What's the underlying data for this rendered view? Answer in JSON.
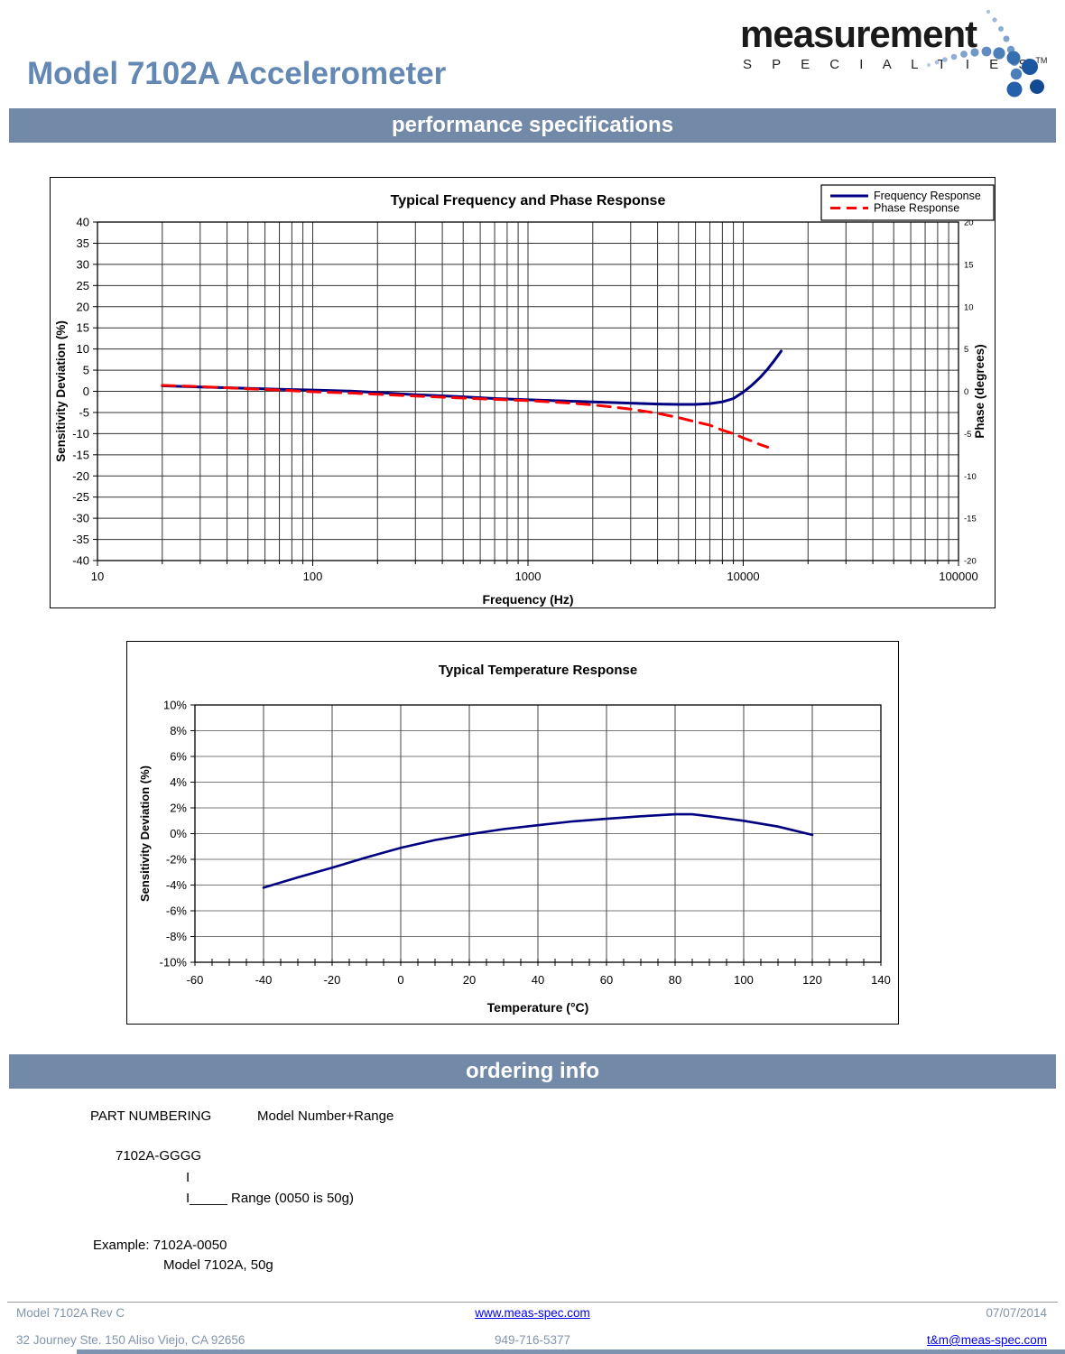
{
  "header": {
    "title": "Model 7102A Accelerometer",
    "logo": {
      "word": "measurement",
      "sub": "S P E C I A L T I E S",
      "tm": "TM"
    }
  },
  "banners": {
    "performance": "performance specifications",
    "ordering": "ordering info"
  },
  "chart_data": [
    {
      "type": "line",
      "title": "Typical Frequency and Phase Response",
      "xlabel": "Frequency (Hz)",
      "ylabel_left": "Sensitivity Deviation (%)",
      "ylabel_right": "Phase (degrees)",
      "x_scale": "log",
      "xlim": [
        10,
        100000
      ],
      "ylim_left": [
        -40,
        40
      ],
      "ylim_right": [
        -20,
        20
      ],
      "yticks_left": [
        40,
        35,
        30,
        25,
        20,
        15,
        10,
        5,
        0,
        -5,
        -10,
        -15,
        -20,
        -25,
        -30,
        -35,
        -40
      ],
      "yticks_right": [
        20,
        15,
        10,
        5,
        0,
        -5,
        -10,
        -15,
        -20
      ],
      "xticks": [
        10,
        100,
        1000,
        10000,
        100000
      ],
      "xtick_labels": [
        "10",
        "100",
        "1000",
        "10000",
        "100000"
      ],
      "grid": true,
      "legend_position": "top-right",
      "series": [
        {
          "name": "Frequency Response",
          "axis": "left",
          "color": "#000080",
          "style": "solid",
          "points": [
            [
              20,
              1.3
            ],
            [
              30,
              1.0
            ],
            [
              50,
              0.7
            ],
            [
              70,
              0.5
            ],
            [
              100,
              0.3
            ],
            [
              150,
              0.05
            ],
            [
              200,
              -0.3
            ],
            [
              300,
              -0.8
            ],
            [
              500,
              -1.3
            ],
            [
              700,
              -1.7
            ],
            [
              1000,
              -2.0
            ],
            [
              1500,
              -2.3
            ],
            [
              2000,
              -2.5
            ],
            [
              3000,
              -2.8
            ],
            [
              4000,
              -3.0
            ],
            [
              5000,
              -3.1
            ],
            [
              6000,
              -3.1
            ],
            [
              7000,
              -2.9
            ],
            [
              8000,
              -2.5
            ],
            [
              9000,
              -1.7
            ],
            [
              10000,
              -0.2
            ],
            [
              11000,
              1.5
            ],
            [
              12000,
              3.3
            ],
            [
              13000,
              5.3
            ],
            [
              14000,
              7.4
            ],
            [
              15000,
              9.5
            ]
          ]
        },
        {
          "name": "Phase Response",
          "axis": "right",
          "color": "#ff0000",
          "style": "dashed",
          "points": [
            [
              20,
              0.7
            ],
            [
              30,
              0.55
            ],
            [
              50,
              0.3
            ],
            [
              70,
              0.15
            ],
            [
              100,
              -0.05
            ],
            [
              150,
              -0.2
            ],
            [
              200,
              -0.35
            ],
            [
              300,
              -0.55
            ],
            [
              500,
              -0.8
            ],
            [
              700,
              -0.95
            ],
            [
              1000,
              -1.1
            ],
            [
              1500,
              -1.35
            ],
            [
              2000,
              -1.6
            ],
            [
              3000,
              -2.1
            ],
            [
              4000,
              -2.6
            ],
            [
              5000,
              -3.1
            ],
            [
              6000,
              -3.6
            ],
            [
              7000,
              -4.0
            ],
            [
              8000,
              -4.6
            ],
            [
              9000,
              -5.0
            ],
            [
              10000,
              -5.5
            ],
            [
              11000,
              -5.9
            ],
            [
              12000,
              -6.3
            ],
            [
              13000,
              -6.6
            ]
          ]
        }
      ]
    },
    {
      "type": "line",
      "title": "Typical Temperature Response",
      "xlabel": "Temperature (°C)",
      "ylabel": "Sensitivity Deviation (%)",
      "xlim": [
        -60,
        140
      ],
      "ylim": [
        -10,
        10
      ],
      "xticks": [
        -60,
        -40,
        -20,
        0,
        20,
        40,
        60,
        80,
        100,
        120,
        140
      ],
      "ytick_labels": [
        "10%",
        "8%",
        "6%",
        "4%",
        "2%",
        "0%",
        "-2%",
        "-4%",
        "-6%",
        "-8%",
        "-10%"
      ],
      "yticks": [
        10,
        8,
        6,
        4,
        2,
        0,
        -2,
        -4,
        -6,
        -8,
        -10
      ],
      "x_minor_step": 5,
      "grid": true,
      "series": [
        {
          "name": "Sensitivity Deviation",
          "color": "#000080",
          "style": "solid",
          "points": [
            [
              -40,
              -4.2
            ],
            [
              -30,
              -3.4
            ],
            [
              -20,
              -2.65
            ],
            [
              -10,
              -1.85
            ],
            [
              0,
              -1.1
            ],
            [
              10,
              -0.5
            ],
            [
              20,
              -0.05
            ],
            [
              30,
              0.35
            ],
            [
              40,
              0.65
            ],
            [
              50,
              0.95
            ],
            [
              60,
              1.15
            ],
            [
              70,
              1.35
            ],
            [
              80,
              1.5
            ],
            [
              85,
              1.5
            ],
            [
              90,
              1.35
            ],
            [
              100,
              1.0
            ],
            [
              110,
              0.55
            ],
            [
              120,
              -0.1
            ]
          ]
        }
      ]
    }
  ],
  "ordering": {
    "part_numbering_label": "PART NUMBERING",
    "part_numbering_value": "Model Number+Range",
    "code": "7102A-GGGG",
    "pipe": "I",
    "range_line": "I_____ Range (0050 is 50g)",
    "example_label": "Example: 7102A-0050",
    "example_value": "Model 7102A, 50g"
  },
  "footer": {
    "doc_rev": "Model 7102A Rev C",
    "website": "www.meas-spec.com",
    "date": "07/07/2014",
    "address": "32 Journey Ste. 150 Aliso Viejo, CA 92656",
    "phone": "949-716-5377",
    "email": "t&m@meas-spec.com"
  },
  "colors": {
    "banner": "#7389a8",
    "title": "#6388b4",
    "link": "#0000ee",
    "frequency_line": "#000080",
    "phase_line": "#ff0000",
    "temperature_line": "#000080"
  }
}
